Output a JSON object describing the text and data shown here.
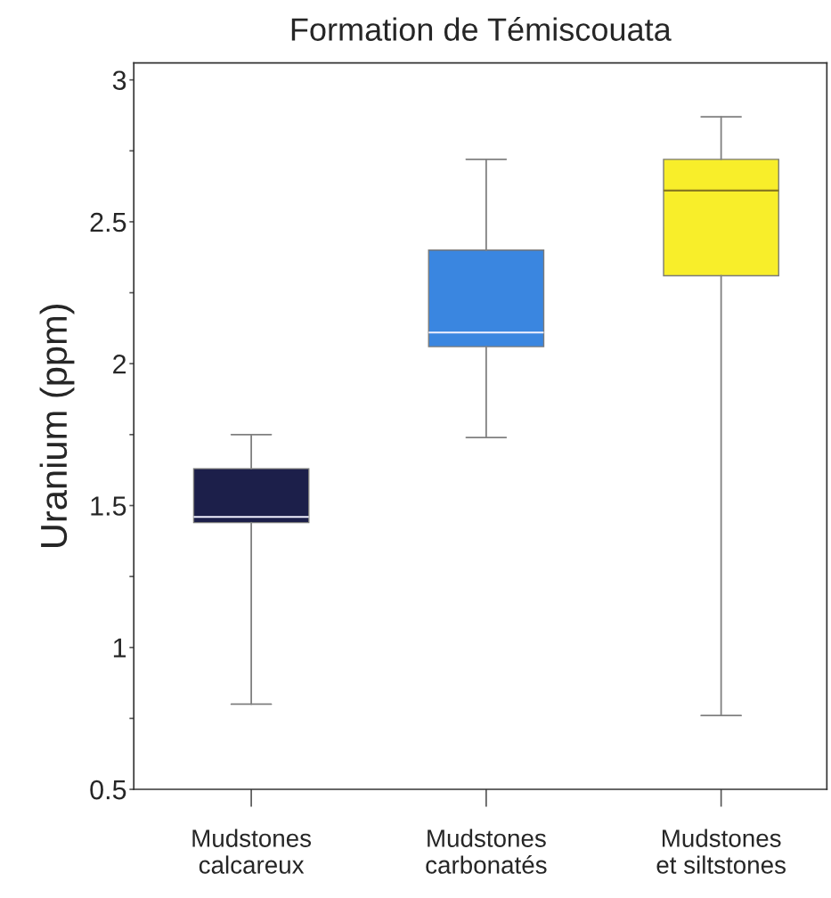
{
  "chart_data": {
    "type": "box",
    "title": "Formation de Témiscouata",
    "ylabel": "Uranium (ppm)",
    "categories": [
      "Mudstones\ncalcareux",
      "Mudstones\ncarbonatés",
      "Mudstones\net siltstones"
    ],
    "colors": [
      "#1c1f4a",
      "#3a86e0",
      "#f8ee2a"
    ],
    "boxes": [
      {
        "low": 0.8,
        "q1": 1.44,
        "median": 1.46,
        "q3": 1.63,
        "high": 1.75
      },
      {
        "low": 1.74,
        "q1": 2.06,
        "median": 2.11,
        "q3": 2.4,
        "high": 2.72
      },
      {
        "low": 0.76,
        "q1": 2.31,
        "median": 2.61,
        "q3": 2.72,
        "high": 2.87
      }
    ],
    "ylim": [
      0.5,
      3.06
    ],
    "yticks": [
      {
        "value": 0.5,
        "label": "0.5"
      },
      {
        "value": 0.75,
        "label": null
      },
      1,
      {
        "value": 1.25,
        "label": null
      },
      {
        "value": 1.5,
        "label": "1.5"
      },
      {
        "value": 1.75,
        "label": null
      },
      2,
      {
        "value": 2.25,
        "label": null
      },
      {
        "value": 2.5,
        "label": "2.5"
      },
      {
        "value": 2.75,
        "label": null
      },
      3
    ],
    "grid": false,
    "legend": false
  }
}
